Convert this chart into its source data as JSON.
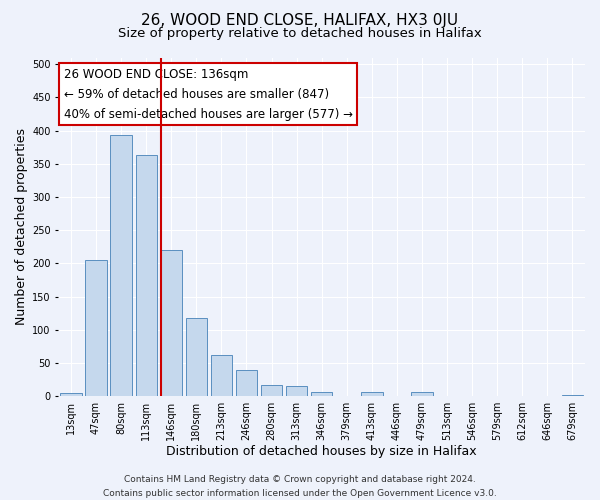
{
  "title": "26, WOOD END CLOSE, HALIFAX, HX3 0JU",
  "subtitle": "Size of property relative to detached houses in Halifax",
  "xlabel": "Distribution of detached houses by size in Halifax",
  "ylabel": "Number of detached properties",
  "footer_lines": [
    "Contains HM Land Registry data © Crown copyright and database right 2024.",
    "Contains public sector information licensed under the Open Government Licence v3.0."
  ],
  "bin_labels": [
    "13sqm",
    "47sqm",
    "80sqm",
    "113sqm",
    "146sqm",
    "180sqm",
    "213sqm",
    "246sqm",
    "280sqm",
    "313sqm",
    "346sqm",
    "379sqm",
    "413sqm",
    "446sqm",
    "479sqm",
    "513sqm",
    "546sqm",
    "579sqm",
    "612sqm",
    "646sqm",
    "679sqm"
  ],
  "bar_heights": [
    5,
    205,
    393,
    363,
    220,
    117,
    62,
    40,
    16,
    15,
    6,
    0,
    6,
    0,
    6,
    0,
    0,
    0,
    0,
    0,
    2
  ],
  "bar_color": "#c5d8ed",
  "bar_edge_color": "#5a8fc0",
  "vline_x_label": "146sqm",
  "vline_x_index": 4,
  "vline_color": "#cc0000",
  "annotation_title": "26 WOOD END CLOSE: 136sqm",
  "annotation_line1": "← 59% of detached houses are smaller (847)",
  "annotation_line2": "40% of semi-detached houses are larger (577) →",
  "annotation_box_facecolor": "#ffffff",
  "annotation_box_edgecolor": "#cc0000",
  "ylim": [
    0,
    510
  ],
  "yticks": [
    0,
    50,
    100,
    150,
    200,
    250,
    300,
    350,
    400,
    450,
    500
  ],
  "background_color": "#eef2fb",
  "plot_background_color": "#eef2fb",
  "grid_color": "#ffffff",
  "title_fontsize": 11,
  "subtitle_fontsize": 9.5,
  "axis_label_fontsize": 9,
  "tick_fontsize": 7,
  "annotation_fontsize": 8.5,
  "footer_fontsize": 6.5
}
